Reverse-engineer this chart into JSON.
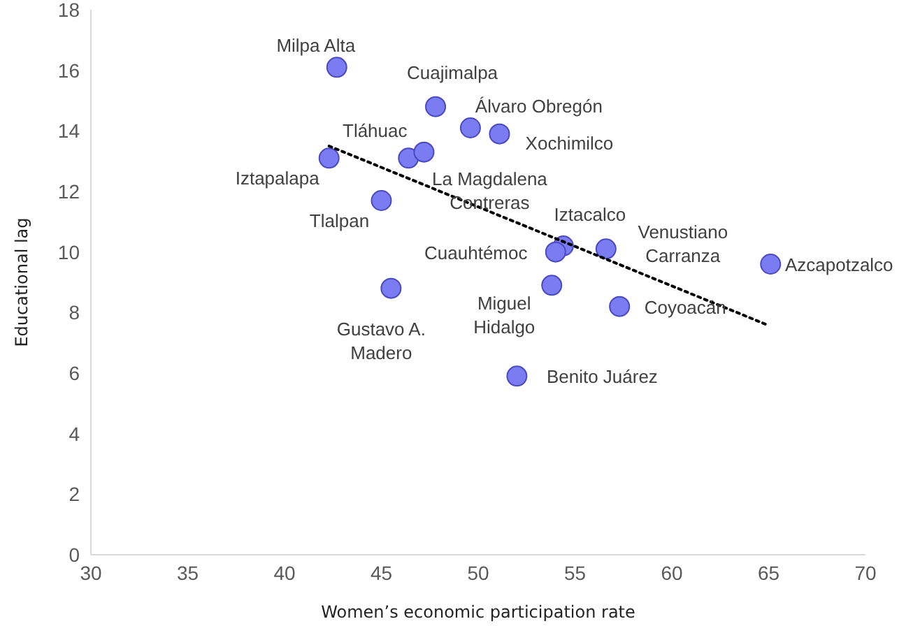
{
  "chart_data": {
    "type": "scatter",
    "xlabel": "Women’s economic participation rate",
    "ylabel": "Educational lag",
    "xlim": [
      30,
      70
    ],
    "xticks": [
      30,
      35,
      40,
      45,
      50,
      55,
      60,
      65,
      70
    ],
    "ylim": [
      0,
      18
    ],
    "yticks": [
      0,
      2,
      4,
      6,
      8,
      10,
      12,
      14,
      16,
      18
    ],
    "grid": false,
    "legend": false,
    "series": [
      {
        "type": "scatter",
        "color": "#7b7bf2",
        "marker": "circle",
        "x": [
          42.7,
          47.8,
          49.6,
          51.1,
          46.4,
          47.2,
          42.3,
          45.0,
          54.4,
          54.0,
          56.6,
          65.1,
          45.5,
          53.8,
          57.3,
          52.0
        ],
        "values": [
          16.1,
          14.8,
          14.1,
          13.9,
          13.1,
          13.3,
          13.1,
          11.7,
          10.2,
          10.0,
          10.1,
          9.6,
          8.8,
          8.9,
          8.2,
          5.9
        ]
      },
      {
        "type": "line",
        "color": "#000000",
        "line_style": "dotted",
        "marker": "none",
        "x": [
          42.3,
          64.9
        ],
        "values": [
          13.5,
          7.6
        ]
      }
    ],
    "annotations": [
      {
        "text": "Milpa Alta",
        "x": 42.7,
        "y": 16.1
      },
      {
        "text": "Cuajimalpa",
        "x": 47.8,
        "y": 14.8
      },
      {
        "text": "Álvaro Obregón",
        "x": 49.6,
        "y": 14.1
      },
      {
        "text": "Xochimilco",
        "x": 51.1,
        "y": 13.9
      },
      {
        "text": "Tláhuac",
        "x": 46.4,
        "y": 13.1
      },
      {
        "text": "La Magdalena Contreras",
        "x": 47.2,
        "y": 13.3
      },
      {
        "text": "Iztapalapa",
        "x": 42.3,
        "y": 13.1
      },
      {
        "text": "Tlalpan",
        "x": 45.0,
        "y": 11.7
      },
      {
        "text": "Iztacalco",
        "x": 54.4,
        "y": 10.2
      },
      {
        "text": "Cuauhtémoc",
        "x": 54.0,
        "y": 10.0
      },
      {
        "text": "Venustiano Carranza",
        "x": 56.6,
        "y": 10.1
      },
      {
        "text": "Azcapotzalco",
        "x": 65.1,
        "y": 9.6
      },
      {
        "text": "Gustavo A. Madero",
        "x": 45.5,
        "y": 8.8
      },
      {
        "text": "Miguel Hidalgo",
        "x": 53.8,
        "y": 8.9
      },
      {
        "text": "Coyoacán",
        "x": 57.3,
        "y": 8.2
      },
      {
        "text": "Benito Juárez",
        "x": 52.0,
        "y": 5.9
      }
    ]
  }
}
